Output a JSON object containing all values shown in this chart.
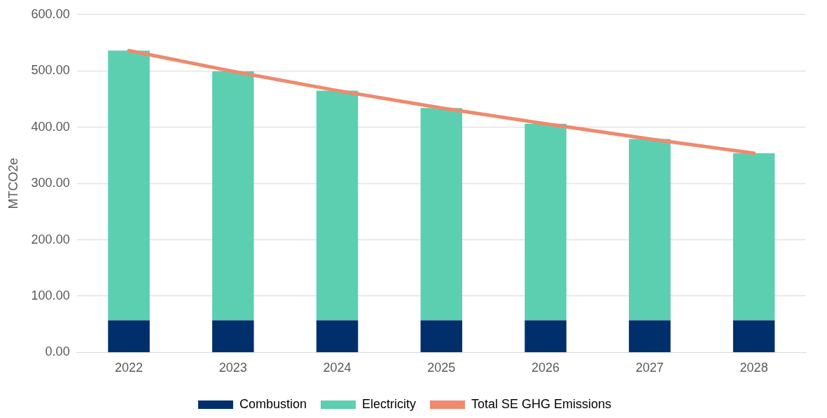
{
  "chart_data": {
    "type": "bar",
    "stacked": true,
    "ylabel": "MTCO2e",
    "categories": [
      "2022",
      "2023",
      "2024",
      "2025",
      "2026",
      "2027",
      "2028"
    ],
    "series": [
      {
        "name": "Combustion",
        "color": "#002f6c",
        "values": [
          57,
          57,
          57,
          57,
          57,
          57,
          57
        ]
      },
      {
        "name": "Electricity",
        "color": "#5ccfb0",
        "values": [
          479,
          442,
          408,
          377,
          349,
          322,
          297
        ]
      },
      {
        "name": "Total SE GHG Emissions",
        "type": "line",
        "color": "#ee8a6e",
        "values": [
          536,
          499,
          465,
          434,
          406,
          379,
          354
        ]
      }
    ],
    "ylim": [
      0,
      600
    ],
    "yticks": [
      {
        "value": 0,
        "label": "0.00"
      },
      {
        "value": 100,
        "label": "100.00"
      },
      {
        "value": 200,
        "label": "200.00"
      },
      {
        "value": 300,
        "label": "300.00"
      },
      {
        "value": 400,
        "label": "400.00"
      },
      {
        "value": 500,
        "label": "500.00"
      },
      {
        "value": 600,
        "label": "600.00"
      }
    ],
    "grid": "y",
    "legend": "bottom",
    "marker": "none"
  }
}
